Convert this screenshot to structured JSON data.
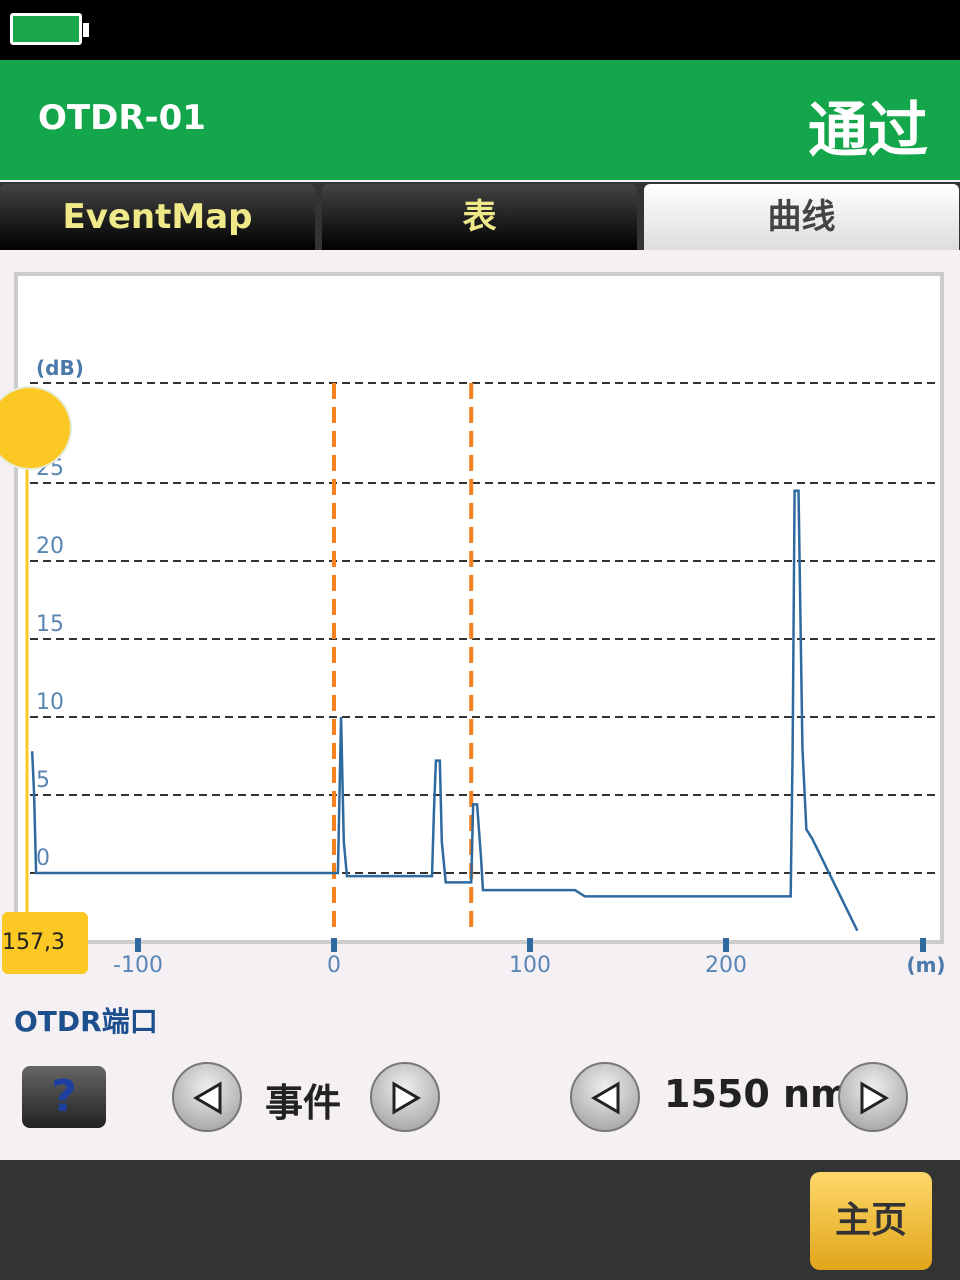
{
  "status": {
    "battery_icon": "battery-full-icon",
    "battery_color": "#1aa64a"
  },
  "header": {
    "title": "OTDR-01",
    "result": "通过",
    "color": "#13a64a"
  },
  "tabs": [
    {
      "label": "EventMap"
    },
    {
      "label": "表"
    },
    {
      "label": "曲线",
      "active": true
    }
  ],
  "chart_data": {
    "type": "line",
    "ylabel": "(dB)",
    "xlabel": "(m)",
    "xlim": [
      -160,
      310
    ],
    "ylim": [
      -4,
      31
    ],
    "y_ticks": [
      "0",
      "5",
      "10",
      "15",
      "20",
      "25"
    ],
    "x_ticks": [
      "-100",
      "0",
      "100",
      "200"
    ],
    "grid": true,
    "markers_m": [
      0,
      70
    ],
    "marker_color": "#f5821f",
    "line_color": "#2e6aa0",
    "cursor": {
      "value_label": "157,3",
      "color": "#fcc824"
    },
    "series": [
      {
        "points": [
          [
            -154,
            7.8
          ],
          [
            -153,
            5
          ],
          [
            -152,
            0
          ],
          [
            0,
            0
          ],
          [
            2,
            0
          ],
          [
            3.6,
            10
          ],
          [
            5,
            2
          ],
          [
            6.6,
            -0.2
          ],
          [
            50,
            -0.2
          ],
          [
            51,
            4
          ],
          [
            52,
            7.2
          ],
          [
            54,
            7.2
          ],
          [
            55,
            2
          ],
          [
            57,
            -0.6
          ],
          [
            70,
            -0.6
          ],
          [
            71,
            4.4
          ],
          [
            73,
            4.4
          ],
          [
            75,
            1
          ],
          [
            76,
            -1.1
          ],
          [
            123,
            -1.1
          ],
          [
            128,
            -1.5
          ],
          [
            233,
            -1.5
          ],
          [
            234,
            8
          ],
          [
            235,
            24.5
          ],
          [
            237,
            24.5
          ],
          [
            239,
            8
          ],
          [
            241,
            2.8
          ],
          [
            244,
            2.2
          ],
          [
            267,
            -3.7
          ]
        ]
      }
    ]
  },
  "port": {
    "label": "OTDR端口"
  },
  "controls": {
    "help": "?",
    "event_label": "事件",
    "wavelength": "1550 nm"
  },
  "footer": {
    "home": "主页"
  }
}
